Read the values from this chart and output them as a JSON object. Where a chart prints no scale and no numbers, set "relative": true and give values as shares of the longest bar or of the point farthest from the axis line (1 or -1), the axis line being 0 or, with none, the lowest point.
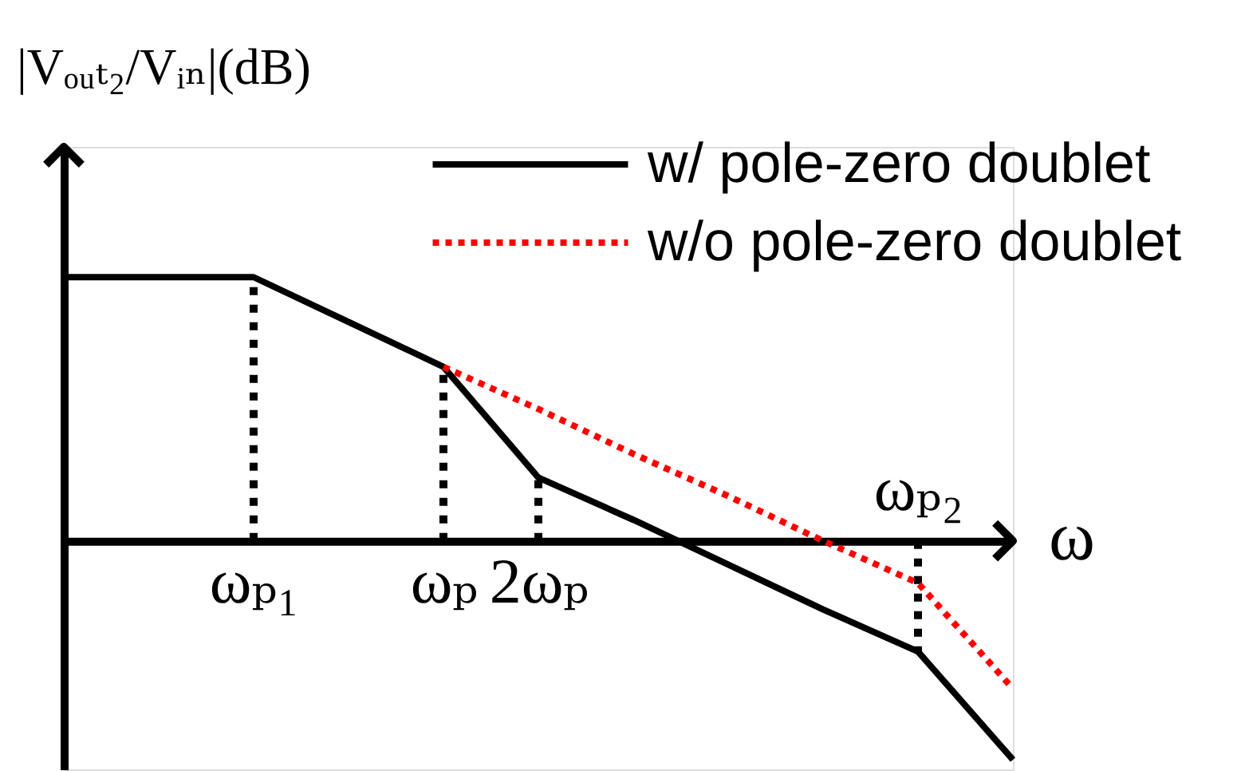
{
  "chart_data": {
    "type": "line",
    "relative": true,
    "ylabel": "|Vₒᵤₜ₂/Vᵢₙ|(dB)",
    "xlabel": "ω",
    "categories": [
      null,
      null,
      "ωₚ₁",
      null,
      "ωₚ",
      "2ωₚ",
      null,
      null,
      null,
      "ωₚ₂",
      null
    ],
    "series": [
      {
        "name": "w/ pole-zero doublet",
        "color": "#000000",
        "line_style": "solid",
        "values": [
          1,
          1,
          1,
          0.83,
          0.66,
          0.24,
          0.08,
          -0.09,
          -0.26,
          -0.42,
          -0.83
        ]
      },
      {
        "name": "w/o pole-zero doublet",
        "color": "#ff0000",
        "line_style": "dotted",
        "values": [
          null,
          null,
          null,
          null,
          0.66,
          0.5,
          0.33,
          0.17,
          0.0,
          -0.16,
          -0.56
        ]
      }
    ],
    "ref_lines": [
      {
        "axis": "x",
        "value": "ωₚ₁",
        "line_style": "dotted",
        "color": "#000000"
      },
      {
        "axis": "x",
        "value": "ωₚ",
        "line_style": "dotted",
        "color": "#000000"
      },
      {
        "axis": "x",
        "value": "2ωₚ",
        "line_style": "dotted",
        "color": "#000000"
      },
      {
        "axis": "x",
        "value": "ωₚ₂",
        "line_style": "dotted",
        "color": "#000000"
      }
    ],
    "legend": "top right"
  }
}
